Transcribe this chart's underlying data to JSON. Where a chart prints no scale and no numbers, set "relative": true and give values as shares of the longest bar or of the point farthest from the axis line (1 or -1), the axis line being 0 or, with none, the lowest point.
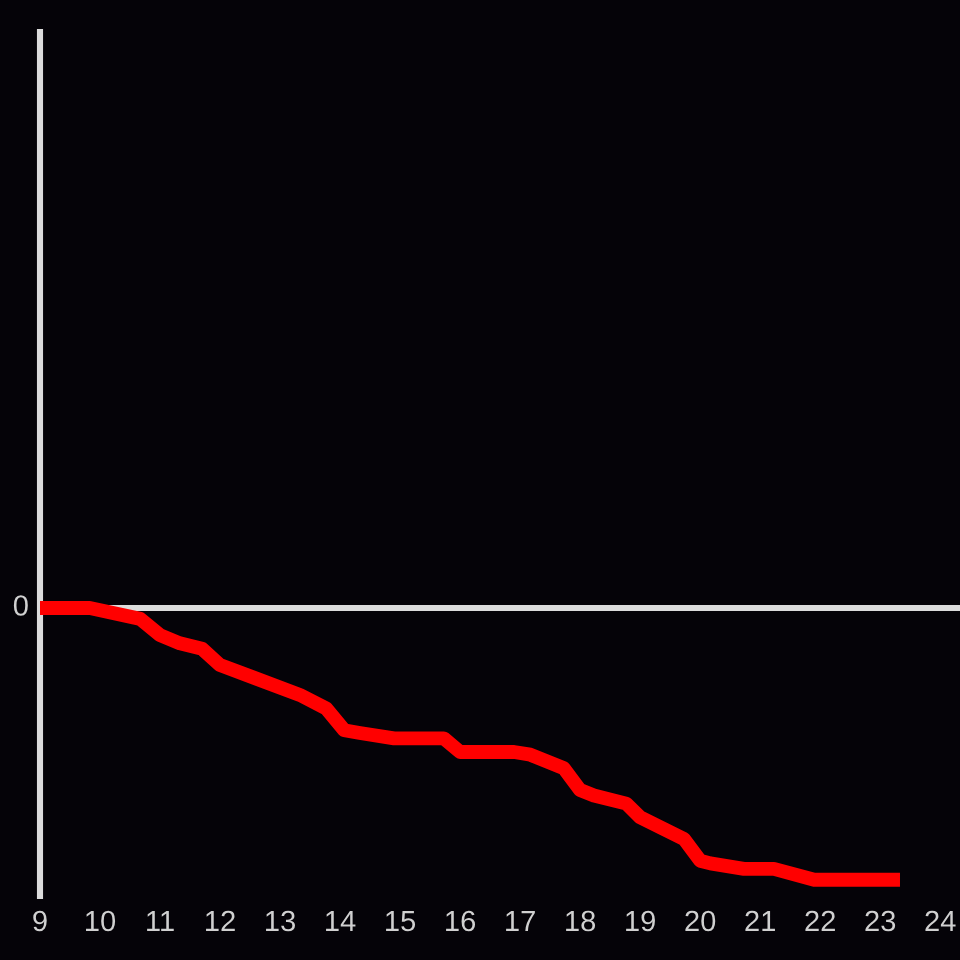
{
  "chart_data": {
    "type": "line",
    "relative": true,
    "x": [
      9.0,
      9.83,
      10.67,
      11.0,
      11.33,
      11.7,
      12.0,
      13.33,
      13.77,
      14.07,
      14.33,
      14.9,
      15.73,
      16.0,
      16.9,
      17.17,
      17.73,
      18.0,
      18.23,
      18.77,
      19.0,
      19.73,
      20.0,
      20.17,
      20.73,
      21.23,
      21.9,
      23.33
    ],
    "series": [
      {
        "color": "#ff0000",
        "values": [
          0,
          0,
          -0.04,
          -0.1,
          -0.13,
          -0.15,
          -0.21,
          -0.32,
          -0.37,
          -0.45,
          -0.46,
          -0.48,
          -0.48,
          -0.53,
          -0.53,
          -0.54,
          -0.59,
          -0.67,
          -0.69,
          -0.72,
          -0.77,
          -0.85,
          -0.93,
          -0.94,
          -0.96,
          -0.96,
          -1.0,
          -1.0
        ]
      }
    ],
    "xlim": [
      9,
      24.33
    ],
    "xticks": [
      9,
      10,
      11,
      12,
      13,
      14,
      15,
      16,
      17,
      18,
      19,
      20,
      21,
      22,
      23,
      24
    ],
    "ref_lines": [
      {
        "axis": "y",
        "value": 0,
        "label": "0",
        "color": "#dcdcdc"
      }
    ],
    "line_style": "solid"
  }
}
